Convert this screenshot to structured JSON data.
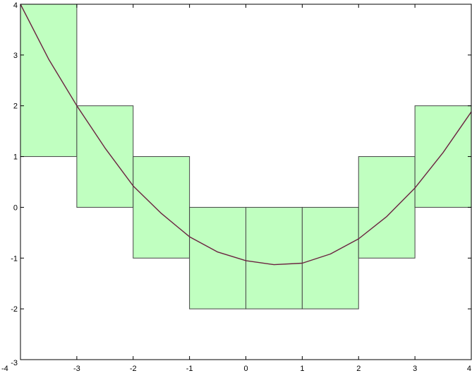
{
  "chart_data": {
    "type": "bar",
    "description_series": "step bars with overlaid curve",
    "xlim": [
      -4,
      4
    ],
    "ylim": [
      -3,
      4
    ],
    "xticks": [
      "-4",
      "-3",
      "-2",
      "-1",
      "0",
      "1",
      "2",
      "3",
      "4"
    ],
    "yticks": [
      "-3",
      "-2",
      "-1",
      "0",
      "1",
      "2",
      "3",
      "4"
    ],
    "bars": [
      {
        "x0": -4,
        "x1": -3,
        "y0": 1,
        "y1": 4
      },
      {
        "x0": -3,
        "x1": -2,
        "y0": 0,
        "y1": 2
      },
      {
        "x0": -2,
        "x1": -1,
        "y0": -1,
        "y1": 1
      },
      {
        "x0": -1,
        "x1": 0,
        "y0": -2,
        "y1": 0
      },
      {
        "x0": 0,
        "x1": 1,
        "y0": -2,
        "y1": 0
      },
      {
        "x0": 1,
        "x1": 2,
        "y0": -2,
        "y1": 0
      },
      {
        "x0": 2,
        "x1": 3,
        "y0": -1,
        "y1": 1
      },
      {
        "x0": 3,
        "x1": 4,
        "y0": 0,
        "y1": 2
      }
    ],
    "curve": {
      "x": [
        -4,
        -3.5,
        -3,
        -2.5,
        -2,
        -1.5,
        -1,
        -0.5,
        0,
        0.5,
        1,
        1.5,
        2,
        2.5,
        3,
        3.5,
        4
      ],
      "y": [
        4,
        2.92,
        2,
        1.17,
        0.42,
        -0.12,
        -0.58,
        -0.88,
        -1.05,
        -1.13,
        -1.1,
        -0.92,
        -0.62,
        -0.18,
        0.38,
        1.08,
        1.88
      ]
    },
    "colors": {
      "bar_fill": "#c0ffc0",
      "bar_stroke": "#444444",
      "curve": "#6b2240",
      "axis": "#000000"
    },
    "grid": false
  }
}
